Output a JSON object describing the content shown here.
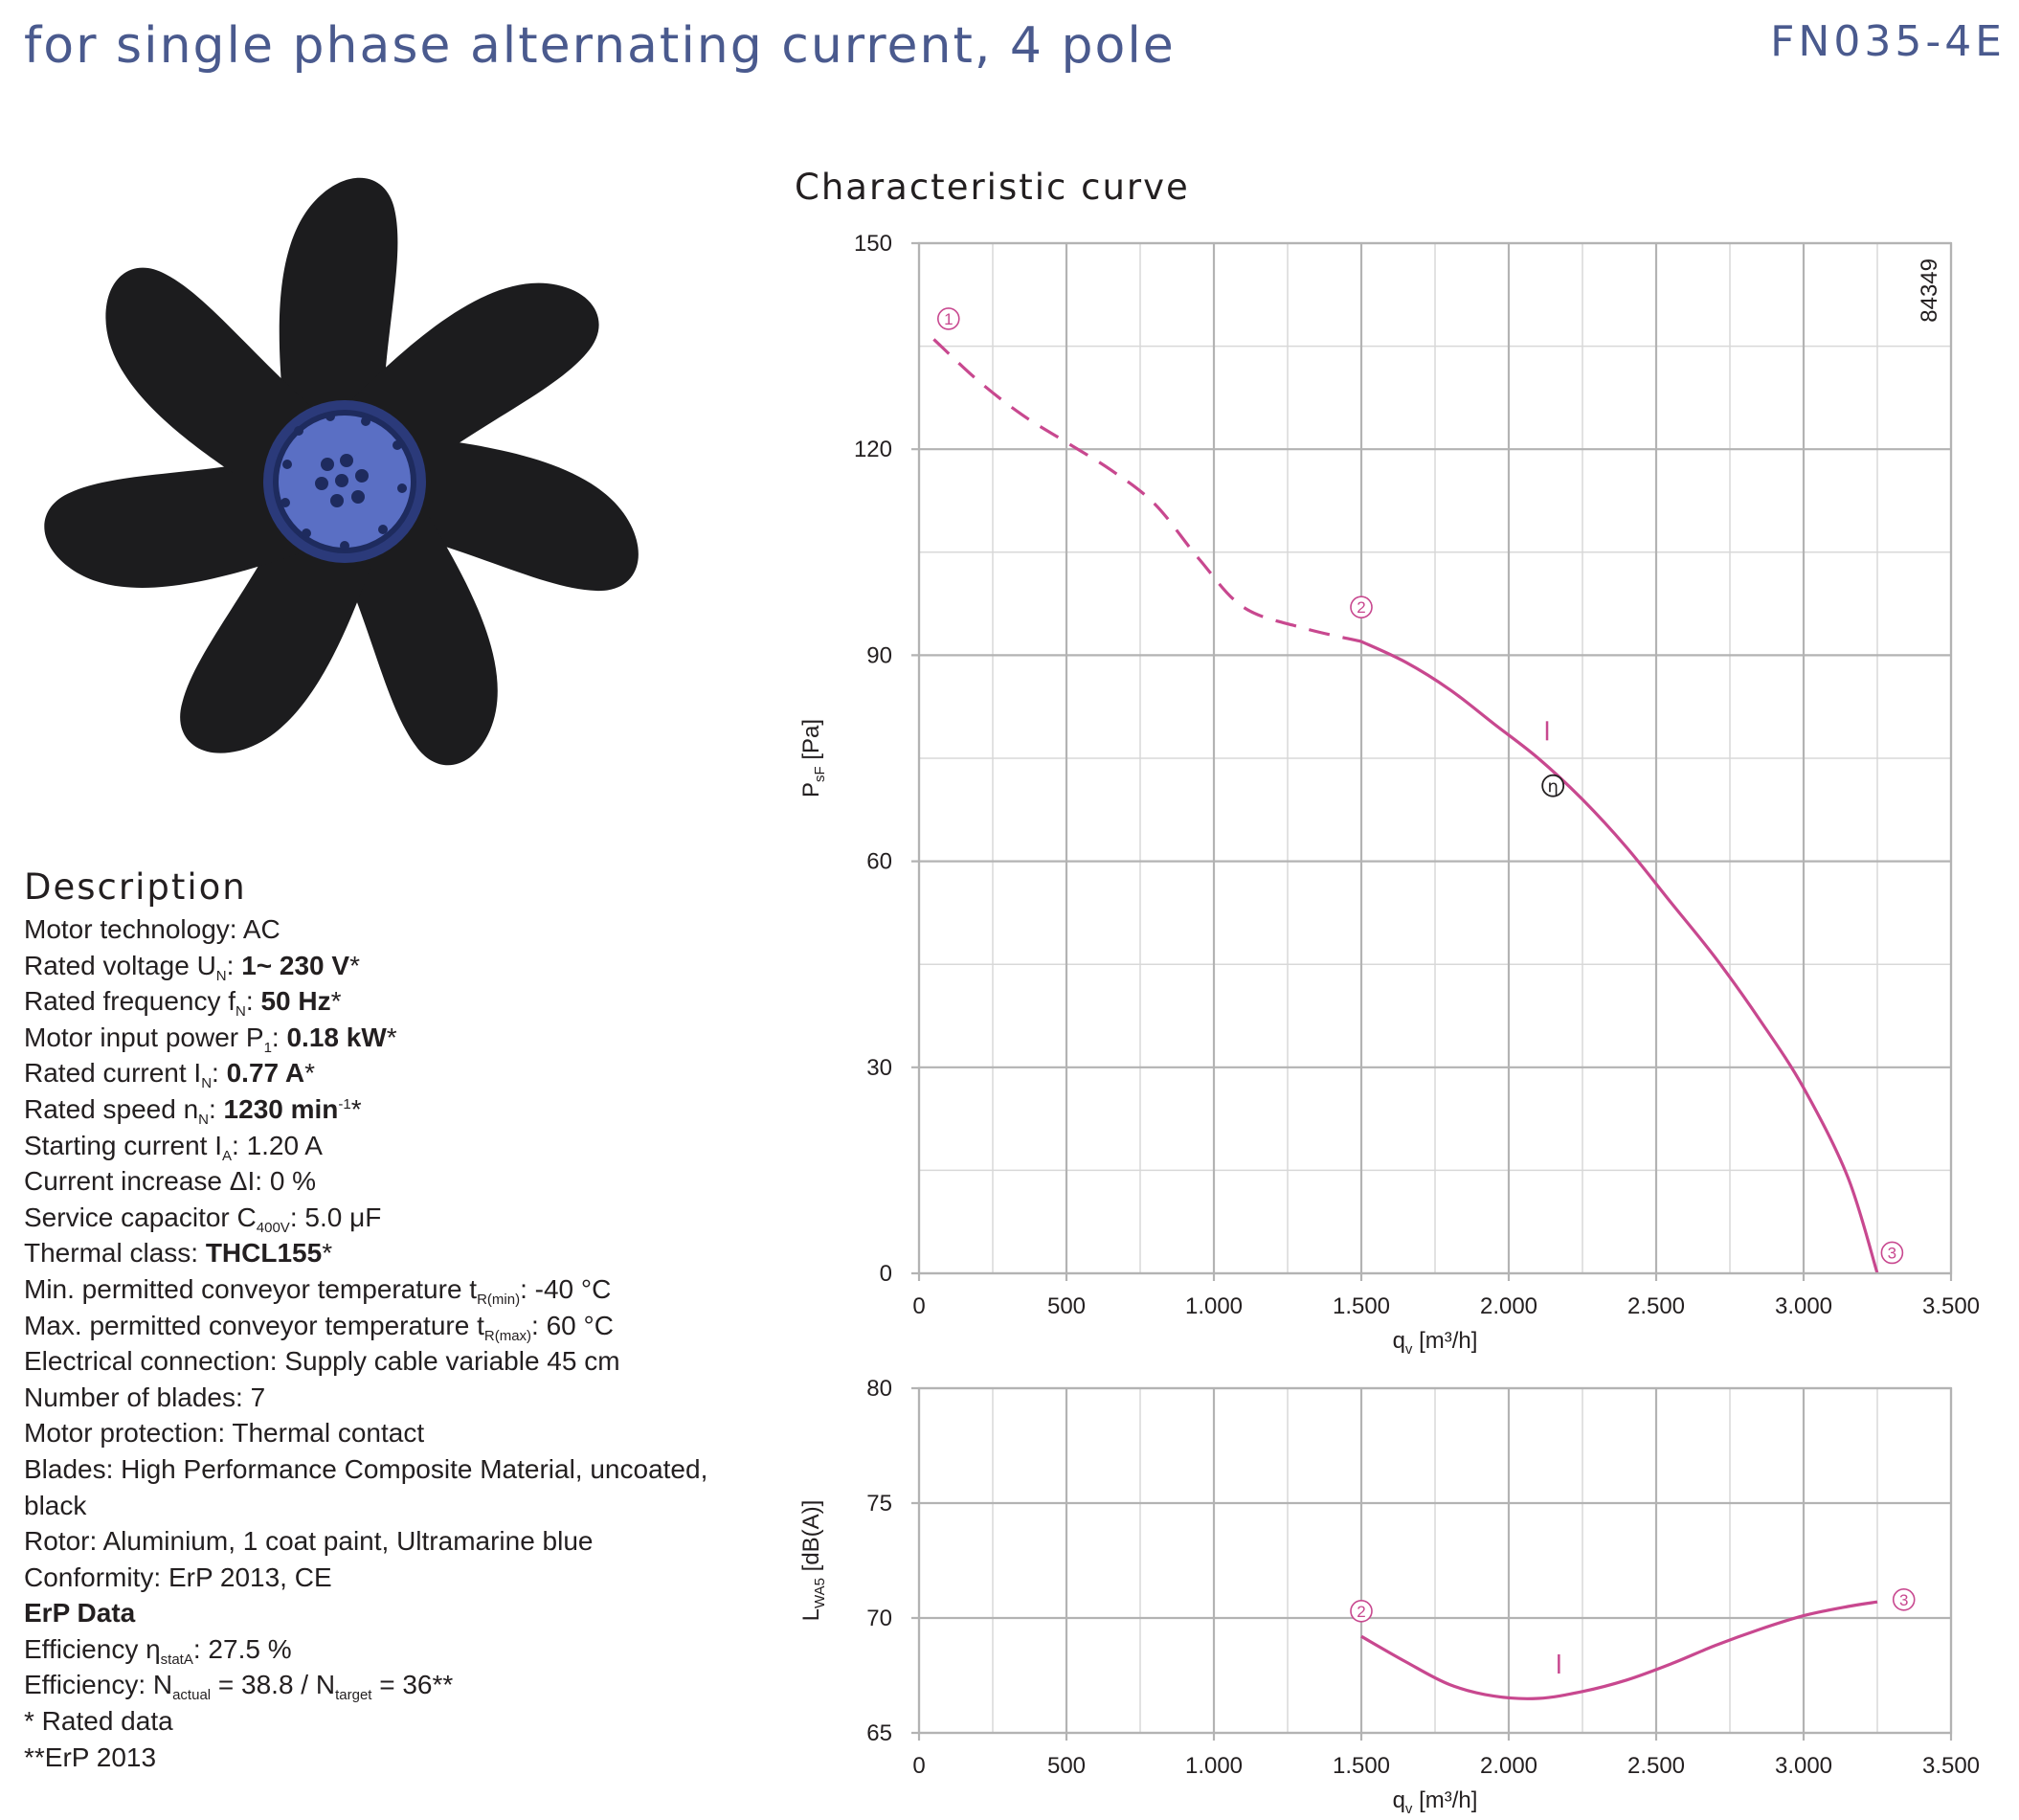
{
  "header": {
    "title": "for single phase alternating current, 4 pole",
    "model": "FN035-4E"
  },
  "colors": {
    "title_blue": "#4a5a8e",
    "curve_magenta": "#c8488f",
    "grid_gray": "#b3b3b3",
    "rotor_blue": "#5a6fc4"
  },
  "description": {
    "heading": "Description",
    "motor_technology": {
      "label": "Motor technology: ",
      "value": "AC"
    },
    "rated_voltage": {
      "label": "Rated voltage U",
      "sub": "N",
      "sep": ": ",
      "value": "1~ 230 V",
      "mark": "*"
    },
    "rated_frequency": {
      "label": "Rated frequency f",
      "sub": "N",
      "sep": ": ",
      "value": "50 Hz",
      "mark": "*"
    },
    "motor_input_power": {
      "label": "Motor input power P",
      "sub": "1",
      "sep": ": ",
      "value": "0.18 kW",
      "mark": "*"
    },
    "rated_current": {
      "label": "Rated current I",
      "sub": "N",
      "sep": ": ",
      "value": "0.77 A",
      "mark": "*"
    },
    "rated_speed": {
      "label": "Rated speed n",
      "sub": "N",
      "sep": ": ",
      "value": "1230 min",
      "sup": "-1",
      "mark": "*"
    },
    "starting_current": {
      "label": "Starting current I",
      "sub": "A",
      "sep": ": ",
      "value": "1.20 A"
    },
    "current_increase": {
      "label": "Current increase ΔI: ",
      "value": "0 %"
    },
    "service_capacitor": {
      "label": "Service capacitor C",
      "sub": "400V",
      "sep": ": ",
      "value": "5.0 μF"
    },
    "thermal_class": {
      "label": "Thermal class: ",
      "value": "THCL155",
      "mark": "*"
    },
    "min_temp": {
      "label": "Min. permitted conveyor temperature t",
      "sub": "R(min)",
      "sep": ": ",
      "value": "-40 °C"
    },
    "max_temp": {
      "label": "Max. permitted conveyor temperature t",
      "sub": "R(max)",
      "sep": ": ",
      "value": "60 °C"
    },
    "electrical_connection": {
      "label": "Electrical connection: ",
      "value": "Supply cable variable 45 cm"
    },
    "number_of_blades": {
      "label": "Number of blades: ",
      "value": "7"
    },
    "motor_protection": {
      "label": "Motor protection: ",
      "value": "Thermal contact"
    },
    "blades": {
      "label": "Blades: ",
      "value": "High Performance Composite Material, uncoated, black"
    },
    "rotor": {
      "label": "Rotor: ",
      "value": "Aluminium, 1 coat paint, Ultramarine blue"
    },
    "conformity": {
      "label": "Conformity: ",
      "value": "ErP 2013, CE"
    },
    "erp_heading": "ErP Data",
    "efficiency_stat": {
      "label": "Efficiency η",
      "sub": "statA",
      "sep": ": ",
      "value": "27.5 %"
    },
    "efficiency_n": {
      "label": "Efficiency: N",
      "sub1": "actual",
      "mid": " = 38.8 / N",
      "sub2": "target",
      "tail": " = 36**"
    },
    "note_rated": "* Rated data",
    "note_erp": "**ErP 2013"
  },
  "chart_title": "Characteristic curve",
  "chart_data": [
    {
      "type": "line",
      "title": "Characteristic curve",
      "xlabel": "q",
      "xlabel_sub": "v",
      "xlabel_unit": " [m³/h]",
      "ylabel": "P",
      "ylabel_sub": "sF",
      "ylabel_unit": " [Pa]",
      "xlim": [
        0,
        3500
      ],
      "ylim": [
        0,
        150
      ],
      "x_ticks": [
        0,
        500,
        1000,
        1500,
        2000,
        2500,
        3000,
        3500
      ],
      "x_tick_labels": [
        "0",
        "500",
        "1.000",
        "1.500",
        "2.000",
        "2.500",
        "3.000",
        "3.500"
      ],
      "y_ticks": [
        0,
        30,
        60,
        90,
        120,
        150
      ],
      "y_tick_labels": [
        "0",
        "30",
        "60",
        "90",
        "120",
        "150"
      ],
      "grid": true,
      "minor_x_step": 250,
      "minor_y_step": 15,
      "chart_id": "84349",
      "series": [
        {
          "style": "dashed",
          "x": [
            50,
            200,
            350,
            500,
            650,
            800,
            950,
            1100,
            1300,
            1500
          ],
          "values": [
            136,
            130,
            125,
            121,
            117,
            112,
            104,
            97,
            94,
            92
          ]
        },
        {
          "style": "solid",
          "x": [
            1500,
            1650,
            1800,
            1950,
            2100,
            2250,
            2400,
            2550,
            2700,
            2850,
            3000,
            3150,
            3250
          ],
          "values": [
            92,
            89,
            85,
            80,
            75,
            69,
            62,
            54,
            46,
            37,
            27,
            14,
            0
          ]
        }
      ],
      "markers": [
        {
          "label": "1",
          "x": 100,
          "y": 139
        },
        {
          "label": "2",
          "x": 1500,
          "y": 97
        },
        {
          "label": "3",
          "x": 3300,
          "y": 3
        }
      ],
      "eta_point": {
        "label": "η",
        "x": 2150,
        "y": 71
      },
      "optimum_tick": {
        "x": 2130,
        "y": 79
      }
    },
    {
      "type": "line",
      "xlabel": "q",
      "xlabel_sub": "v",
      "xlabel_unit": " [m³/h]",
      "ylabel": "L",
      "ylabel_sub": "WA5",
      "ylabel_unit": " [dB(A)]",
      "xlim": [
        0,
        3500
      ],
      "ylim": [
        65,
        80
      ],
      "x_ticks": [
        0,
        500,
        1000,
        1500,
        2000,
        2500,
        3000,
        3500
      ],
      "x_tick_labels": [
        "0",
        "500",
        "1.000",
        "1.500",
        "2.000",
        "2.500",
        "3.000",
        "3.500"
      ],
      "y_ticks": [
        65,
        70,
        75,
        80
      ],
      "y_tick_labels": [
        "65",
        "70",
        "75",
        "80"
      ],
      "grid": true,
      "minor_x_step": 250,
      "series": [
        {
          "style": "solid",
          "x": [
            1500,
            1650,
            1800,
            1950,
            2100,
            2250,
            2400,
            2550,
            2700,
            2850,
            3000,
            3150,
            3250
          ],
          "values": [
            69.2,
            68.1,
            67.1,
            66.6,
            66.5,
            66.8,
            67.3,
            68.0,
            68.8,
            69.5,
            70.1,
            70.5,
            70.7
          ]
        }
      ],
      "markers": [
        {
          "label": "2",
          "x": 1500,
          "y": 70.3
        },
        {
          "label": "3",
          "x": 3340,
          "y": 70.8
        }
      ],
      "optimum_tick": {
        "x": 2170,
        "y": 68
      }
    }
  ]
}
